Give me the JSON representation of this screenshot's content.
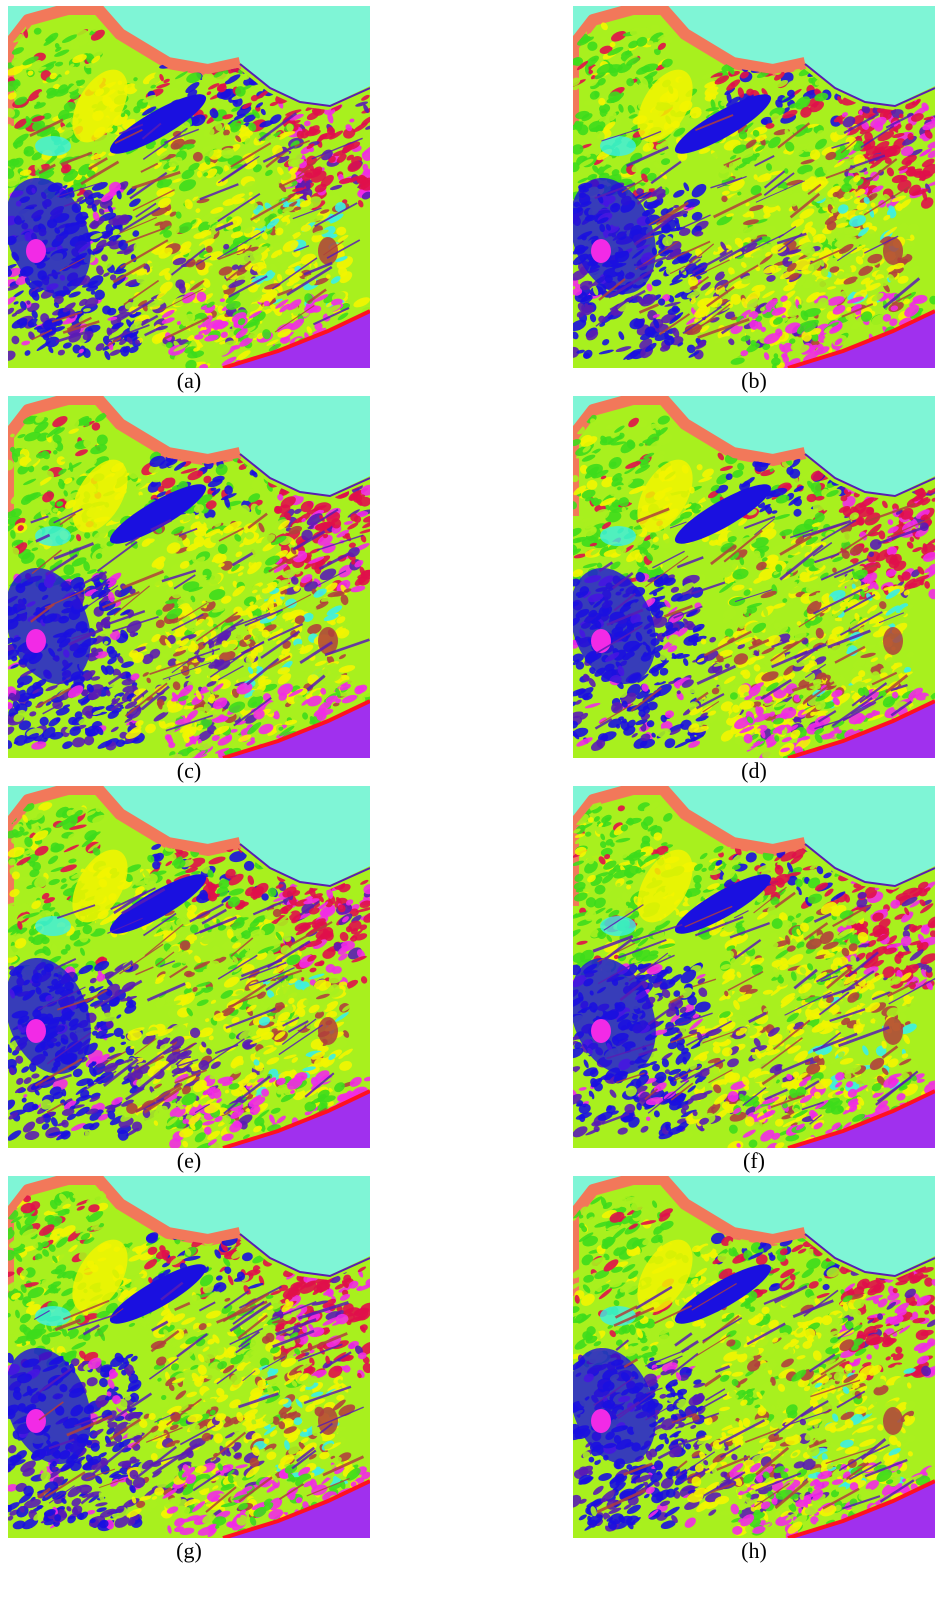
{
  "figure": {
    "panels": [
      {
        "id": "a",
        "caption": "(a)"
      },
      {
        "id": "b",
        "caption": "(b)"
      },
      {
        "id": "c",
        "caption": "(c)"
      },
      {
        "id": "d",
        "caption": "(d)"
      },
      {
        "id": "e",
        "caption": "(e)"
      },
      {
        "id": "f",
        "caption": "(f)"
      },
      {
        "id": "g",
        "caption": "(g)"
      },
      {
        "id": "h",
        "caption": "(h)"
      }
    ],
    "class_colors": {
      "sea": "#7ff5d6",
      "coast": "#f2785a",
      "green": "#3ddc1c",
      "lime": "#a8f01e",
      "yellow": "#f3f500",
      "blue": "#1a10e0",
      "purple": "#5a1cb4",
      "magenta": "#f22ae6",
      "crimson": "#e0104a",
      "cyan": "#3af0e6",
      "brown": "#b0403c",
      "violet": "#a030ee",
      "red": "#ff1020"
    }
  }
}
